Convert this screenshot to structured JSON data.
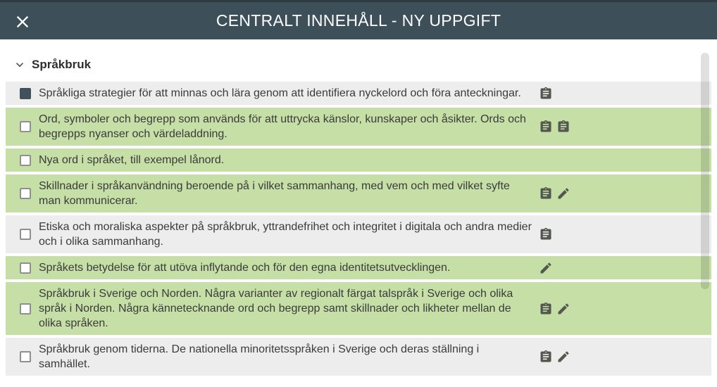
{
  "header": {
    "title": "CENTRALT INNEHÅLL - NY UPPGIFT"
  },
  "section": {
    "title": "Språkbruk",
    "expanded": true
  },
  "colors": {
    "header_bg": "#3d4f59",
    "row_gray": "#ededed",
    "row_green": "#c5dfa6",
    "checkbox_checked": "#40515b",
    "icon": "#545750",
    "text": "#3b3b3b"
  },
  "rows": [
    {
      "text": "Språkliga strategier för att minnas och lära genom att identifiera nyckelord och föra anteckningar.",
      "bg": "gray",
      "checked": true,
      "icons": [
        "clipboard"
      ]
    },
    {
      "text": "Ord, symboler och begrepp som används för att uttrycka känslor, kunskaper och åsikter. Ords och begrepps nyanser och värdeladdning.",
      "bg": "green",
      "checked": false,
      "icons": [
        "clipboard",
        "clipboard"
      ]
    },
    {
      "text": "Nya ord i språket, till exempel lånord.",
      "bg": "green",
      "checked": false,
      "icons": []
    },
    {
      "text": "Skillnader i språkanvändning beroende på i vilket sammanhang, med vem och med vilket syfte man kommunicerar.",
      "bg": "green",
      "checked": false,
      "icons": [
        "clipboard",
        "pencil"
      ]
    },
    {
      "text": "Etiska och moraliska aspekter på språkbruk, yttrandefrihet och integritet i digitala och andra medier och i olika sammanhang.",
      "bg": "gray",
      "checked": false,
      "icons": [
        "clipboard"
      ]
    },
    {
      "text": "Språkets betydelse för att utöva inflytande och för den egna identitetsutvecklingen.",
      "bg": "green",
      "checked": false,
      "icons": [
        "pencil"
      ]
    },
    {
      "text": "Språkbruk i Sverige och Norden. Några varianter av regionalt färgat talspråk i Sverige och olika språk i Norden. Några kännetecknande ord och begrepp samt skillnader och likheter mellan de olika språken.",
      "bg": "green",
      "checked": false,
      "icons": [
        "clipboard",
        "pencil"
      ]
    },
    {
      "text": "Språkbruk genom tiderna. De nationella minoritetsspråken i Sverige och deras ställning i samhället.",
      "bg": "gray",
      "checked": false,
      "icons": [
        "clipboard",
        "pencil"
      ]
    }
  ]
}
